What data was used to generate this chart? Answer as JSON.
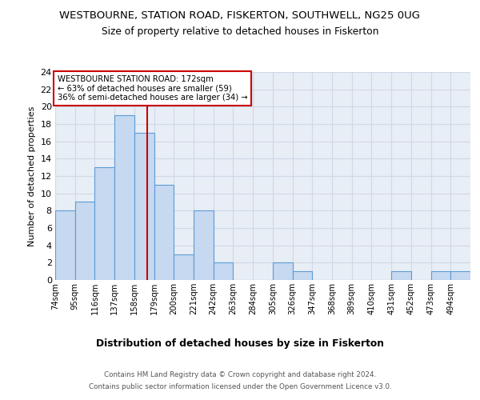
{
  "title": "WESTBOURNE, STATION ROAD, FISKERTON, SOUTHWELL, NG25 0UG",
  "subtitle": "Size of property relative to detached houses in Fiskerton",
  "xlabel": "Distribution of detached houses by size in Fiskerton",
  "ylabel": "Number of detached properties",
  "footnote1": "Contains HM Land Registry data © Crown copyright and database right 2024.",
  "footnote2": "Contains public sector information licensed under the Open Government Licence v3.0.",
  "bin_labels": [
    "74sqm",
    "95sqm",
    "116sqm",
    "137sqm",
    "158sqm",
    "179sqm",
    "200sqm",
    "221sqm",
    "242sqm",
    "263sqm",
    "284sqm",
    "305sqm",
    "326sqm",
    "347sqm",
    "368sqm",
    "389sqm",
    "410sqm",
    "431sqm",
    "452sqm",
    "473sqm",
    "494sqm"
  ],
  "bin_edges": [
    74,
    95,
    116,
    137,
    158,
    179,
    200,
    221,
    242,
    263,
    284,
    305,
    326,
    347,
    368,
    389,
    410,
    431,
    452,
    473,
    494,
    515
  ],
  "values": [
    8,
    9,
    13,
    19,
    17,
    11,
    3,
    8,
    2,
    0,
    0,
    2,
    1,
    0,
    0,
    0,
    0,
    1,
    0,
    1,
    1
  ],
  "bar_color": "#c6d9f0",
  "bar_edge_color": "#5b9bd5",
  "grid_color": "#d0d8e8",
  "bg_color": "#e8eef5",
  "vline_x": 172,
  "vline_color": "#cc0000",
  "annotation_text": "WESTBOURNE STATION ROAD: 172sqm\n← 63% of detached houses are smaller (59)\n36% of semi-detached houses are larger (34) →",
  "annotation_box_color": "#ffffff",
  "annotation_box_edge": "#cc0000",
  "ylim": [
    0,
    24
  ],
  "yticks": [
    0,
    2,
    4,
    6,
    8,
    10,
    12,
    14,
    16,
    18,
    20,
    22,
    24
  ]
}
